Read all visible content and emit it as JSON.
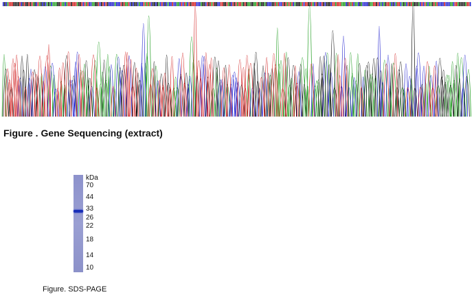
{
  "figures": [
    {
      "caption": "Figure . Gene Sequencing (extract)"
    },
    {
      "caption": "Figure. SDS-PAGE",
      "unit": "kDa",
      "markers": [
        "70",
        "44",
        "33",
        "26",
        "22",
        "18",
        "14",
        "10"
      ]
    }
  ]
}
